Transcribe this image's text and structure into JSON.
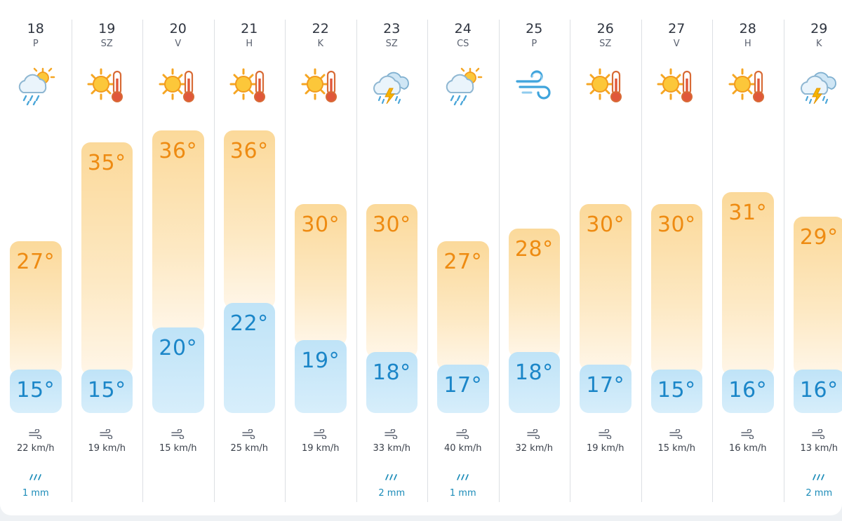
{
  "forecast": {
    "days": [
      {
        "num": "18",
        "name": "P",
        "icon": "rain-cloud-sun-icon",
        "high": "27°",
        "low": "15°",
        "high_val": 27,
        "low_val": 15,
        "wind": "22 km/h",
        "rain": "1 mm"
      },
      {
        "num": "19",
        "name": "SZ",
        "icon": "sun-thermometer-icon",
        "high": "35°",
        "low": "15°",
        "high_val": 35,
        "low_val": 15,
        "wind": "19 km/h",
        "rain": ""
      },
      {
        "num": "20",
        "name": "V",
        "icon": "sun-thermometer-icon",
        "high": "36°",
        "low": "20°",
        "high_val": 36,
        "low_val": 20,
        "wind": "15 km/h",
        "rain": ""
      },
      {
        "num": "21",
        "name": "H",
        "icon": "sun-thermometer-icon",
        "high": "36°",
        "low": "22°",
        "high_val": 36,
        "low_val": 22,
        "wind": "25 km/h",
        "rain": ""
      },
      {
        "num": "22",
        "name": "K",
        "icon": "sun-thermometer-icon",
        "high": "30°",
        "low": "19°",
        "high_val": 30,
        "low_val": 19,
        "wind": "19 km/h",
        "rain": ""
      },
      {
        "num": "23",
        "name": "SZ",
        "icon": "thunderstorm-cloud-icon",
        "high": "30°",
        "low": "18°",
        "high_val": 30,
        "low_val": 18,
        "wind": "33 km/h",
        "rain": "2 mm"
      },
      {
        "num": "24",
        "name": "CS",
        "icon": "rain-cloud-sun-icon",
        "high": "27°",
        "low": "17°",
        "high_val": 27,
        "low_val": 17,
        "wind": "40 km/h",
        "rain": "1 mm"
      },
      {
        "num": "25",
        "name": "P",
        "icon": "wind-icon",
        "high": "28°",
        "low": "18°",
        "high_val": 28,
        "low_val": 18,
        "wind": "32 km/h",
        "rain": ""
      },
      {
        "num": "26",
        "name": "SZ",
        "icon": "sun-thermometer-icon",
        "high": "30°",
        "low": "17°",
        "high_val": 30,
        "low_val": 17,
        "wind": "19 km/h",
        "rain": ""
      },
      {
        "num": "27",
        "name": "V",
        "icon": "sun-thermometer-icon",
        "high": "30°",
        "low": "15°",
        "high_val": 30,
        "low_val": 15,
        "wind": "15 km/h",
        "rain": ""
      },
      {
        "num": "28",
        "name": "H",
        "icon": "sun-thermometer-icon",
        "high": "31°",
        "low": "16°",
        "high_val": 31,
        "low_val": 16,
        "wind": "16 km/h",
        "rain": ""
      },
      {
        "num": "29",
        "name": "K",
        "icon": "thunderstorm-cloud-icon",
        "high": "29°",
        "low": "16°",
        "high_val": 29,
        "low_val": 16,
        "wind": "13 km/h",
        "rain": "2 mm"
      }
    ]
  },
  "colors": {
    "high_text": "#ee8b12",
    "low_text": "#1b86c8",
    "rain_text": "#1a8bb8"
  }
}
